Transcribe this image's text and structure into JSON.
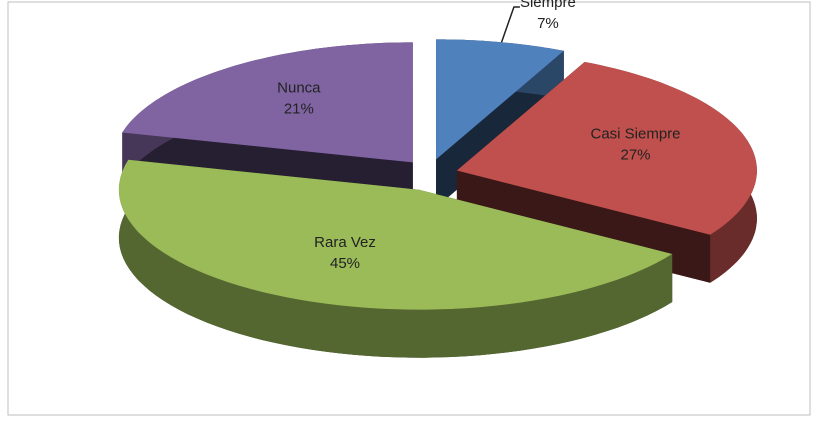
{
  "chart_data": {
    "type": "pie3d",
    "categories": [
      "Siempre",
      "Casi Siempre",
      "Rara Vez",
      "Nunca"
    ],
    "values": [
      7,
      27,
      45,
      21
    ],
    "value_labels": [
      "7%",
      "27%",
      "45%",
      "21%"
    ],
    "colors": [
      "#4f81bd",
      "#c0504d",
      "#9bbb59",
      "#8064a2"
    ]
  }
}
